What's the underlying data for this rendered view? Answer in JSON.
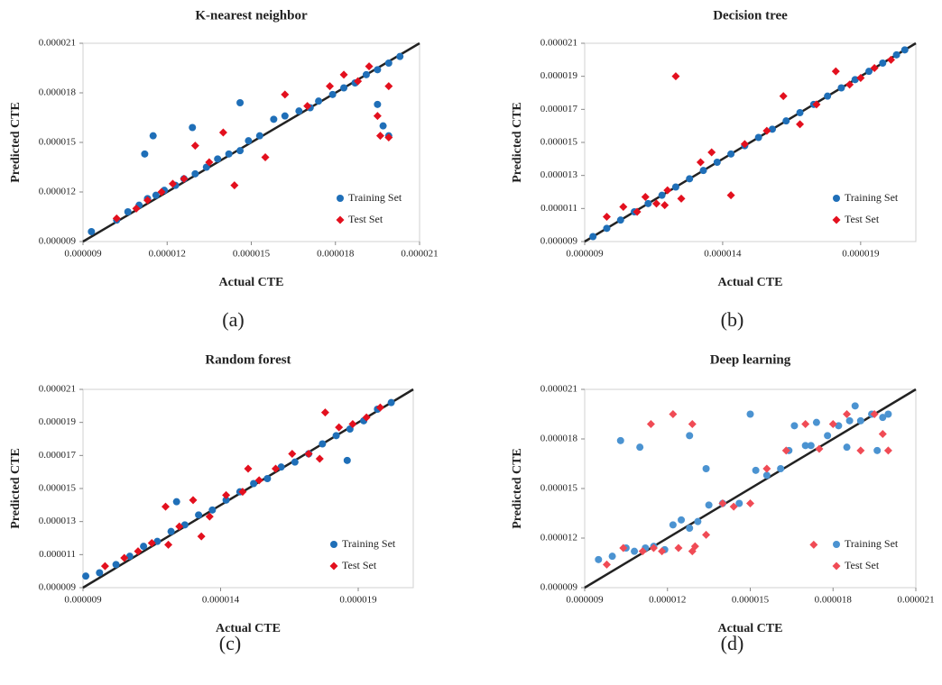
{
  "chart_data": [
    {
      "type": "scatter",
      "title": "K-nearest neighbor",
      "x_label": "Actual CTE",
      "y_label": "Predicted CTE",
      "caption": "(a)",
      "legend": "lower right",
      "xlim": [
        9e-06,
        2.1e-05
      ],
      "ylim": [
        9e-06,
        2.1e-05
      ],
      "xticks": [
        {
          "value": 9e-06,
          "label": "0.000009"
        },
        {
          "value": 1.2e-05,
          "label": "0.000012"
        },
        {
          "value": 1.5e-05,
          "label": "0.000015"
        },
        {
          "value": 1.8e-05,
          "label": "0.000018"
        },
        {
          "value": 2.1e-05,
          "label": "0.000021"
        }
      ],
      "yticks": [
        {
          "value": 9e-06,
          "label": "0.000009"
        },
        {
          "value": 1.2e-05,
          "label": "0.000012"
        },
        {
          "value": 1.5e-05,
          "label": "0.000015"
        },
        {
          "value": 1.8e-05,
          "label": "0.000018"
        },
        {
          "value": 2.1e-05,
          "label": "0.000021"
        }
      ],
      "series": [
        {
          "name": "Training Set",
          "color": "#1f6fb8",
          "marker": "circle",
          "x": [
            9.3e-06,
            1.02e-05,
            1.06e-05,
            1.1e-05,
            1.13e-05,
            1.16e-05,
            1.19e-05,
            1.23e-05,
            1.26e-05,
            1.3e-05,
            1.34e-05,
            1.38e-05,
            1.42e-05,
            1.46e-05,
            1.49e-05,
            1.53e-05,
            1.58e-05,
            1.62e-05,
            1.67e-05,
            1.71e-05,
            1.74e-05,
            1.79e-05,
            1.83e-05,
            1.87e-05,
            1.91e-05,
            1.95e-05,
            1.99e-05,
            2.03e-05,
            1.12e-05,
            1.15e-05,
            1.29e-05,
            1.46e-05,
            1.95e-05,
            1.97e-05,
            1.99e-05
          ],
          "y": [
            9.6e-06,
            1.03e-05,
            1.08e-05,
            1.12e-05,
            1.16e-05,
            1.18e-05,
            1.21e-05,
            1.24e-05,
            1.28e-05,
            1.31e-05,
            1.35e-05,
            1.4e-05,
            1.43e-05,
            1.45e-05,
            1.51e-05,
            1.54e-05,
            1.64e-05,
            1.66e-05,
            1.69e-05,
            1.71e-05,
            1.75e-05,
            1.79e-05,
            1.83e-05,
            1.86e-05,
            1.91e-05,
            1.94e-05,
            1.98e-05,
            2.02e-05,
            1.43e-05,
            1.54e-05,
            1.59e-05,
            1.74e-05,
            1.73e-05,
            1.6e-05,
            1.54e-05
          ]
        },
        {
          "name": "Test Set",
          "color": "#e3101e",
          "marker": "diamond",
          "x": [
            1.02e-05,
            1.09e-05,
            1.13e-05,
            1.18e-05,
            1.22e-05,
            1.26e-05,
            1.3e-05,
            1.35e-05,
            1.4e-05,
            1.44e-05,
            1.55e-05,
            1.62e-05,
            1.7e-05,
            1.78e-05,
            1.83e-05,
            1.88e-05,
            1.92e-05,
            1.95e-05,
            1.99e-05,
            1.96e-05,
            1.99e-05
          ],
          "y": [
            1.04e-05,
            1.1e-05,
            1.15e-05,
            1.2e-05,
            1.25e-05,
            1.28e-05,
            1.48e-05,
            1.38e-05,
            1.56e-05,
            1.24e-05,
            1.41e-05,
            1.79e-05,
            1.72e-05,
            1.84e-05,
            1.91e-05,
            1.87e-05,
            1.96e-05,
            1.66e-05,
            1.84e-05,
            1.54e-05,
            1.53e-05
          ]
        }
      ]
    },
    {
      "type": "scatter",
      "title": "Decision tree",
      "x_label": "Actual CTE",
      "y_label": "Predicted CTE",
      "caption": "(b)",
      "legend": "lower right",
      "xlim": [
        9e-06,
        2.1e-05
      ],
      "ylim": [
        9e-06,
        2.1e-05
      ],
      "xticks": [
        {
          "value": 9e-06,
          "label": "0.000009"
        },
        {
          "value": 1.4e-05,
          "label": "0.000014"
        },
        {
          "value": 1.9e-05,
          "label": "0.000019"
        }
      ],
      "yticks": [
        {
          "value": 9e-06,
          "label": "0.000009"
        },
        {
          "value": 1.1e-05,
          "label": "0.000011"
        },
        {
          "value": 1.3e-05,
          "label": "0.000013"
        },
        {
          "value": 1.5e-05,
          "label": "0.000015"
        },
        {
          "value": 1.7e-05,
          "label": "0.000017"
        },
        {
          "value": 1.9e-05,
          "label": "0.000019"
        },
        {
          "value": 2.1e-05,
          "label": "0.000021"
        }
      ],
      "series": [
        {
          "name": "Training Set",
          "color": "#1f6fb8",
          "marker": "circle",
          "x": [
            9.3e-06,
            9.8e-06,
            1.03e-05,
            1.08e-05,
            1.13e-05,
            1.18e-05,
            1.23e-05,
            1.28e-05,
            1.33e-05,
            1.38e-05,
            1.43e-05,
            1.48e-05,
            1.53e-05,
            1.58e-05,
            1.63e-05,
            1.68e-05,
            1.73e-05,
            1.78e-05,
            1.83e-05,
            1.88e-05,
            1.93e-05,
            1.98e-05,
            2.03e-05,
            2.06e-05
          ],
          "y": [
            9.3e-06,
            9.8e-06,
            1.03e-05,
            1.08e-05,
            1.13e-05,
            1.18e-05,
            1.23e-05,
            1.28e-05,
            1.33e-05,
            1.38e-05,
            1.43e-05,
            1.48e-05,
            1.53e-05,
            1.58e-05,
            1.63e-05,
            1.68e-05,
            1.73e-05,
            1.78e-05,
            1.83e-05,
            1.88e-05,
            1.93e-05,
            1.98e-05,
            2.03e-05,
            2.06e-05
          ]
        },
        {
          "name": "Test Set",
          "color": "#e3101e",
          "marker": "diamond",
          "x": [
            9.8e-06,
            1.04e-05,
            1.09e-05,
            1.12e-05,
            1.16e-05,
            1.2e-05,
            1.19e-05,
            1.25e-05,
            1.32e-05,
            1.36e-05,
            1.43e-05,
            1.48e-05,
            1.56e-05,
            1.62e-05,
            1.68e-05,
            1.74e-05,
            1.81e-05,
            1.86e-05,
            1.9e-05,
            1.95e-05,
            2.01e-05,
            1.23e-05
          ],
          "y": [
            1.05e-05,
            1.11e-05,
            1.08e-05,
            1.17e-05,
            1.13e-05,
            1.21e-05,
            1.12e-05,
            1.16e-05,
            1.38e-05,
            1.44e-05,
            1.18e-05,
            1.49e-05,
            1.57e-05,
            1.78e-05,
            1.61e-05,
            1.73e-05,
            1.93e-05,
            1.85e-05,
            1.89e-05,
            1.95e-05,
            2e-05,
            1.9e-05
          ]
        }
      ]
    },
    {
      "type": "scatter",
      "title": "Random forest",
      "x_label": "Actual CTE",
      "y_label": "Predicted CTE",
      "caption": "(c)",
      "legend": "lower right",
      "xlim": [
        9e-06,
        2.1e-05
      ],
      "ylim": [
        9e-06,
        2.1e-05
      ],
      "xticks": [
        {
          "value": 9e-06,
          "label": "0.000009"
        },
        {
          "value": 1.4e-05,
          "label": "0.000014"
        },
        {
          "value": 1.9e-05,
          "label": "0.000019"
        }
      ],
      "yticks": [
        {
          "value": 9e-06,
          "label": "0.000009"
        },
        {
          "value": 1.1e-05,
          "label": "0.000011"
        },
        {
          "value": 1.3e-05,
          "label": "0.000013"
        },
        {
          "value": 1.5e-05,
          "label": "0.000015"
        },
        {
          "value": 1.7e-05,
          "label": "0.000017"
        },
        {
          "value": 1.9e-05,
          "label": "0.000019"
        },
        {
          "value": 2.1e-05,
          "label": "0.000021"
        }
      ],
      "series": [
        {
          "name": "Training Set",
          "color": "#1f6fb8",
          "marker": "circle",
          "x": [
            9.1e-06,
            9.6e-06,
            1.02e-05,
            1.07e-05,
            1.12e-05,
            1.17e-05,
            1.22e-05,
            1.27e-05,
            1.32e-05,
            1.37e-05,
            1.42e-05,
            1.47e-05,
            1.52e-05,
            1.57e-05,
            1.62e-05,
            1.67e-05,
            1.72e-05,
            1.77e-05,
            1.82e-05,
            1.87e-05,
            1.92e-05,
            1.97e-05,
            2.02e-05,
            1.86e-05,
            1.24e-05
          ],
          "y": [
            9.7e-06,
            9.9e-06,
            1.04e-05,
            1.09e-05,
            1.15e-05,
            1.18e-05,
            1.24e-05,
            1.28e-05,
            1.34e-05,
            1.37e-05,
            1.43e-05,
            1.48e-05,
            1.53e-05,
            1.56e-05,
            1.63e-05,
            1.66e-05,
            1.71e-05,
            1.77e-05,
            1.82e-05,
            1.86e-05,
            1.91e-05,
            1.98e-05,
            2.02e-05,
            1.67e-05,
            1.42e-05
          ]
        },
        {
          "name": "Test Set",
          "color": "#e3101e",
          "marker": "diamond",
          "x": [
            9.8e-06,
            1.05e-05,
            1.1e-05,
            1.15e-05,
            1.2e-05,
            1.25e-05,
            1.3e-05,
            1.36e-05,
            1.42e-05,
            1.48e-05,
            1.54e-05,
            1.6e-05,
            1.66e-05,
            1.72e-05,
            1.78e-05,
            1.83e-05,
            1.88e-05,
            1.93e-05,
            1.98e-05,
            1.33e-05,
            1.21e-05,
            1.76e-05,
            1.5e-05
          ],
          "y": [
            1.03e-05,
            1.08e-05,
            1.12e-05,
            1.17e-05,
            1.39e-05,
            1.27e-05,
            1.43e-05,
            1.33e-05,
            1.46e-05,
            1.48e-05,
            1.55e-05,
            1.62e-05,
            1.71e-05,
            1.71e-05,
            1.96e-05,
            1.87e-05,
            1.89e-05,
            1.93e-05,
            1.99e-05,
            1.21e-05,
            1.16e-05,
            1.68e-05,
            1.62e-05
          ]
        }
      ]
    },
    {
      "type": "scatter",
      "title": "Deep learning",
      "x_label": "Actual CTE",
      "y_label": "Predicted CTE",
      "caption": "(d)",
      "legend": "lower right",
      "xlim": [
        9e-06,
        2.1e-05
      ],
      "ylim": [
        9e-06,
        2.1e-05
      ],
      "xticks": [
        {
          "value": 9e-06,
          "label": "0.000009"
        },
        {
          "value": 1.2e-05,
          "label": "0.000012"
        },
        {
          "value": 1.5e-05,
          "label": "0.000015"
        },
        {
          "value": 1.8e-05,
          "label": "0.000018"
        },
        {
          "value": 2.1e-05,
          "label": "0.000021"
        }
      ],
      "yticks": [
        {
          "value": 9e-06,
          "label": "0.000009"
        },
        {
          "value": 1.2e-05,
          "label": "0.000012"
        },
        {
          "value": 1.5e-05,
          "label": "0.000015"
        },
        {
          "value": 1.8e-05,
          "label": "0.000018"
        },
        {
          "value": 2.1e-05,
          "label": "0.000021"
        }
      ],
      "series": [
        {
          "name": "Training Set",
          "color": "#4b93d1",
          "marker": "circle",
          "x": [
            9.5e-06,
            1e-05,
            1.05e-05,
            1.08e-05,
            1.12e-05,
            1.15e-05,
            1.19e-05,
            1.22e-05,
            1.25e-05,
            1.28e-05,
            1.31e-05,
            1.35e-05,
            1.4e-05,
            1.46e-05,
            1.52e-05,
            1.56e-05,
            1.61e-05,
            1.66e-05,
            1.7e-05,
            1.74e-05,
            1.78e-05,
            1.82e-05,
            1.86e-05,
            1.9e-05,
            1.94e-05,
            1.98e-05,
            2e-05,
            1.03e-05,
            1.1e-05,
            1.28e-05,
            1.34e-05,
            1.5e-05,
            1.64e-05,
            1.72e-05,
            1.85e-05,
            1.88e-05,
            1.96e-05
          ],
          "y": [
            1.07e-05,
            1.09e-05,
            1.14e-05,
            1.12e-05,
            1.14e-05,
            1.15e-05,
            1.13e-05,
            1.28e-05,
            1.31e-05,
            1.26e-05,
            1.3e-05,
            1.4e-05,
            1.41e-05,
            1.41e-05,
            1.61e-05,
            1.58e-05,
            1.62e-05,
            1.88e-05,
            1.76e-05,
            1.9e-05,
            1.82e-05,
            1.88e-05,
            1.91e-05,
            1.91e-05,
            1.95e-05,
            1.93e-05,
            1.95e-05,
            1.79e-05,
            1.75e-05,
            1.82e-05,
            1.62e-05,
            1.95e-05,
            1.73e-05,
            1.76e-05,
            1.75e-05,
            2e-05,
            1.73e-05
          ]
        },
        {
          "name": "Test Set",
          "color": "#f04b55",
          "marker": "diamond",
          "x": [
            9.8e-06,
            1.04e-05,
            1.11e-05,
            1.15e-05,
            1.18e-05,
            1.24e-05,
            1.29e-05,
            1.34e-05,
            1.4e-05,
            1.44e-05,
            1.5e-05,
            1.56e-05,
            1.63e-05,
            1.7e-05,
            1.75e-05,
            1.8e-05,
            1.85e-05,
            1.9e-05,
            1.95e-05,
            2e-05,
            1.14e-05,
            1.22e-05,
            1.29e-05,
            1.3e-05,
            1.73e-05,
            1.98e-05
          ],
          "y": [
            1.04e-05,
            1.14e-05,
            1.12e-05,
            1.14e-05,
            1.12e-05,
            1.14e-05,
            1.12e-05,
            1.22e-05,
            1.41e-05,
            1.39e-05,
            1.41e-05,
            1.62e-05,
            1.73e-05,
            1.89e-05,
            1.74e-05,
            1.89e-05,
            1.95e-05,
            1.73e-05,
            1.95e-05,
            1.73e-05,
            1.89e-05,
            1.95e-05,
            1.89e-05,
            1.15e-05,
            1.16e-05,
            1.83e-05
          ]
        }
      ]
    }
  ]
}
